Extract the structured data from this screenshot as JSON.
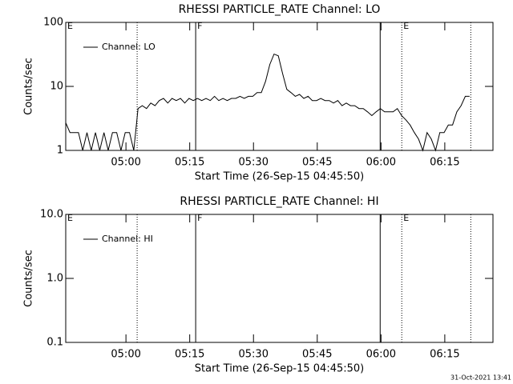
{
  "chart_data": [
    {
      "type": "line",
      "title": "RHESSI PARTICLE_RATE Channel: LO",
      "xlabel": "Start Time (26-Sep-15 04:45:50)",
      "ylabel": "Counts/sec",
      "log_y": true,
      "legend": "upper left",
      "xlim": [
        0,
        6030
      ],
      "xticks": [
        {
          "value": 850,
          "label": "05:00"
        },
        {
          "value": 1750,
          "label": "05:15"
        },
        {
          "value": 2650,
          "label": "05:30"
        },
        {
          "value": 3550,
          "label": "05:45"
        },
        {
          "value": 4450,
          "label": "06:00"
        },
        {
          "value": 5350,
          "label": "06:15"
        }
      ],
      "ylim": [
        1,
        100
      ],
      "yticks": [
        1,
        10,
        100
      ],
      "vlines": [
        {
          "x": 1008,
          "style": "dotted"
        },
        {
          "x": 1834,
          "style": "solid"
        },
        {
          "x": 4438,
          "style": "solid"
        },
        {
          "x": 4743,
          "style": "dotted"
        },
        {
          "x": 5717,
          "style": "dotted"
        }
      ],
      "flags": [
        {
          "x": 0,
          "label": "E"
        },
        {
          "x": 1834,
          "label": "F"
        },
        {
          "x": 4743,
          "label": "E"
        }
      ],
      "series": [
        {
          "name": "Channel: LO",
          "color": "#000000",
          "x": [
            0,
            60,
            120,
            180,
            240,
            300,
            360,
            420,
            480,
            540,
            600,
            660,
            720,
            780,
            840,
            900,
            960,
            1020,
            1080,
            1140,
            1200,
            1260,
            1320,
            1380,
            1440,
            1500,
            1560,
            1620,
            1680,
            1740,
            1800,
            1860,
            1920,
            1980,
            2040,
            2100,
            2160,
            2220,
            2280,
            2340,
            2400,
            2460,
            2520,
            2580,
            2640,
            2700,
            2760,
            2820,
            2880,
            2940,
            3000,
            3060,
            3120,
            3180,
            3240,
            3300,
            3360,
            3420,
            3480,
            3540,
            3600,
            3660,
            3720,
            3780,
            3840,
            3900,
            3960,
            4020,
            4080,
            4140,
            4200,
            4260,
            4320,
            4380,
            4440,
            4500,
            4560,
            4620,
            4680,
            4740,
            4800,
            4860,
            4920,
            4980,
            5040,
            5100,
            5160,
            5220,
            5280,
            5340,
            5400,
            5460,
            5520,
            5580,
            5640,
            5700
          ],
          "values": [
            2.7,
            1.9,
            1.9,
            1.9,
            1,
            1.9,
            1,
            1.9,
            1,
            1.9,
            1,
            1.9,
            1.9,
            1,
            1.9,
            1.9,
            1,
            4.5,
            5,
            4.5,
            5.5,
            5,
            6,
            6.5,
            5.5,
            6.5,
            6,
            6.5,
            5.5,
            6.5,
            6,
            6.5,
            6,
            6.5,
            6,
            7,
            6,
            6.5,
            6,
            6.5,
            6.5,
            7,
            6.5,
            7,
            7,
            8,
            8,
            12,
            22,
            32,
            30,
            16,
            9,
            8,
            7,
            7.5,
            6.5,
            7,
            6,
            6,
            6.5,
            6,
            6,
            5.5,
            6,
            5,
            5.5,
            5,
            5,
            4.5,
            4.5,
            4,
            3.5,
            4,
            4.5,
            4,
            4,
            4,
            4.5,
            3.5,
            3,
            2.5,
            1.9,
            1.5,
            1,
            1.9,
            1.5,
            1,
            1.9,
            1.9,
            2.5,
            2.5,
            4,
            5,
            7,
            7
          ]
        }
      ]
    },
    {
      "type": "line",
      "title": "RHESSI PARTICLE_RATE Channel: HI",
      "xlabel": "Start Time (26-Sep-15 04:45:50)",
      "ylabel": "Counts/sec",
      "log_y": true,
      "legend": "upper left",
      "xlim": [
        0,
        6030
      ],
      "xticks": [
        {
          "value": 850,
          "label": "05:00"
        },
        {
          "value": 1750,
          "label": "05:15"
        },
        {
          "value": 2650,
          "label": "05:30"
        },
        {
          "value": 3550,
          "label": "05:45"
        },
        {
          "value": 4450,
          "label": "06:00"
        },
        {
          "value": 5350,
          "label": "06:15"
        }
      ],
      "ylim": [
        0.1,
        10
      ],
      "yticks": [
        0.1,
        {
          "value": 1,
          "label": "1.0"
        },
        {
          "value": 10,
          "label": "10.0"
        }
      ],
      "vlines": [
        {
          "x": 1008,
          "style": "dotted"
        },
        {
          "x": 1834,
          "style": "solid"
        },
        {
          "x": 4438,
          "style": "solid"
        },
        {
          "x": 4743,
          "style": "dotted"
        },
        {
          "x": 5717,
          "style": "dotted"
        }
      ],
      "flags": [
        {
          "x": 0,
          "label": "E"
        },
        {
          "x": 1834,
          "label": "F"
        },
        {
          "x": 4743,
          "label": "E"
        }
      ],
      "series": [
        {
          "name": "Channel: HI",
          "color": "#000000",
          "x": [],
          "values": []
        }
      ]
    }
  ],
  "footer": "31-Oct-2021 13:41"
}
